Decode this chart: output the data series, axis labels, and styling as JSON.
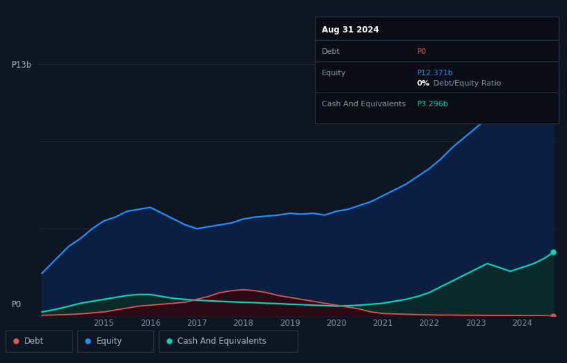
{
  "background_color": "#0e1621",
  "plot_bg_color": "#0e1621",
  "grid_color": "#1e2d3d",
  "years": [
    2013.67,
    2014.0,
    2014.25,
    2014.5,
    2014.75,
    2015.0,
    2015.25,
    2015.5,
    2015.75,
    2016.0,
    2016.25,
    2016.5,
    2016.75,
    2017.0,
    2017.25,
    2017.5,
    2017.75,
    2018.0,
    2018.25,
    2018.5,
    2018.75,
    2019.0,
    2019.25,
    2019.5,
    2019.75,
    2020.0,
    2020.25,
    2020.5,
    2020.75,
    2021.0,
    2021.25,
    2021.5,
    2021.75,
    2022.0,
    2022.25,
    2022.5,
    2022.75,
    2023.0,
    2023.25,
    2023.5,
    2023.75,
    2024.0,
    2024.25,
    2024.5,
    2024.67
  ],
  "equity": [
    2.2,
    3.0,
    3.6,
    4.0,
    4.5,
    4.9,
    5.1,
    5.4,
    5.5,
    5.6,
    5.3,
    5.0,
    4.7,
    4.5,
    4.6,
    4.7,
    4.8,
    5.0,
    5.1,
    5.15,
    5.2,
    5.3,
    5.25,
    5.3,
    5.2,
    5.4,
    5.5,
    5.7,
    5.9,
    6.2,
    6.5,
    6.8,
    7.2,
    7.6,
    8.1,
    8.7,
    9.2,
    9.7,
    10.2,
    10.8,
    11.2,
    11.5,
    11.8,
    12.1,
    12.371
  ],
  "debt": [
    0.03,
    0.05,
    0.07,
    0.1,
    0.15,
    0.2,
    0.3,
    0.4,
    0.5,
    0.55,
    0.6,
    0.65,
    0.7,
    0.85,
    1.0,
    1.2,
    1.3,
    1.35,
    1.3,
    1.2,
    1.05,
    0.95,
    0.85,
    0.75,
    0.65,
    0.55,
    0.45,
    0.35,
    0.2,
    0.12,
    0.1,
    0.08,
    0.06,
    0.05,
    0.04,
    0.04,
    0.03,
    0.03,
    0.02,
    0.02,
    0.02,
    0.01,
    0.01,
    0.005,
    0.0
  ],
  "cash": [
    0.2,
    0.35,
    0.5,
    0.65,
    0.75,
    0.85,
    0.95,
    1.05,
    1.1,
    1.1,
    1.0,
    0.9,
    0.85,
    0.8,
    0.78,
    0.75,
    0.72,
    0.7,
    0.68,
    0.65,
    0.63,
    0.6,
    0.58,
    0.55,
    0.53,
    0.5,
    0.52,
    0.55,
    0.6,
    0.65,
    0.75,
    0.85,
    1.0,
    1.2,
    1.5,
    1.8,
    2.1,
    2.4,
    2.7,
    2.5,
    2.3,
    2.5,
    2.7,
    3.0,
    3.296
  ],
  "equity_color": "#1e90ff",
  "debt_color": "#e05555",
  "cash_color": "#00d4bb",
  "ylabel": "P13b",
  "y0label": "P0",
  "ylim_max": 13.5,
  "x_ticks": [
    2015,
    2016,
    2017,
    2018,
    2019,
    2020,
    2021,
    2022,
    2023,
    2024
  ],
  "tooltip_date": "Aug 31 2024",
  "tooltip_debt_label": "Debt",
  "tooltip_debt_value": "P0",
  "tooltip_equity_label": "Equity",
  "tooltip_equity_value": "P12.371b",
  "tooltip_ratio_bold": "0%",
  "tooltip_ratio_text": " Debt/Equity Ratio",
  "tooltip_cash_label": "Cash And Equivalents",
  "tooltip_cash_value": "P3.296b",
  "legend_items": [
    "Debt",
    "Equity",
    "Cash And Equivalents"
  ],
  "legend_colors": [
    "#e05555",
    "#1e90ff",
    "#00d4bb"
  ]
}
